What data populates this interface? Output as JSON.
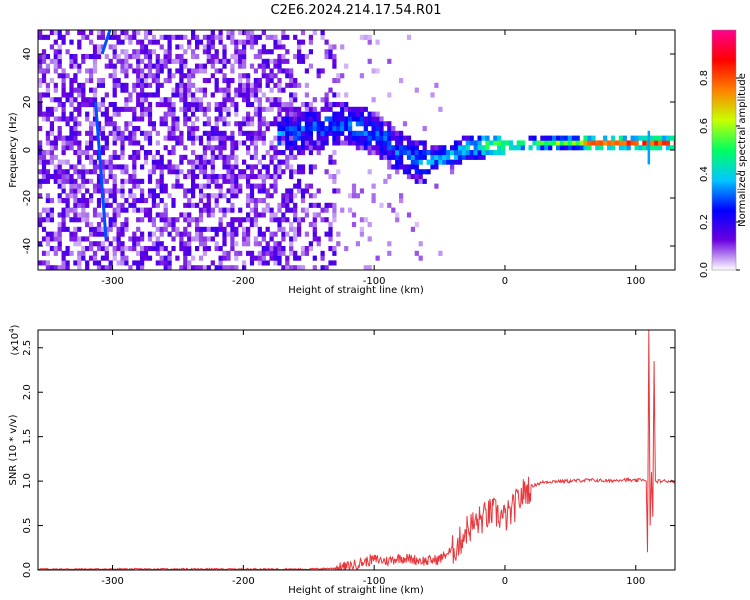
{
  "title": "C2E6.2024.214.17.54.R01",
  "chart_data": [
    {
      "type": "heatmap",
      "xlabel": "Height of straight line (km)",
      "ylabel": "Frequency (Hz)",
      "xlim": [
        -357,
        130
      ],
      "ylim": [
        -50,
        50
      ],
      "x_ticks": [
        -300,
        -200,
        -100,
        0,
        100
      ],
      "y_ticks": [
        -40,
        -20,
        0,
        20,
        40
      ],
      "colorbar": {
        "label": "Normalized spectral amplitude",
        "range": [
          0.0,
          1.0
        ],
        "ticks": [
          "0.0",
          "0.2",
          "0.4",
          "0.6",
          "0.8"
        ],
        "colors": [
          "#ffffff",
          "#6a00e0",
          "#0000ff",
          "#00c8ff",
          "#00ff60",
          "#c8ff00",
          "#ff8000",
          "#ff0000",
          "#ff0090"
        ]
      },
      "ridge": [
        [
          -160,
          6
        ],
        [
          -140,
          9
        ],
        [
          -130,
          10
        ],
        [
          -110,
          8
        ],
        [
          -95,
          4
        ],
        [
          -80,
          -3
        ],
        [
          -65,
          -6
        ],
        [
          -50,
          -4
        ],
        [
          -40,
          -3
        ],
        [
          -30,
          0
        ],
        [
          -15,
          1
        ],
        [
          0,
          1
        ],
        [
          30,
          2
        ],
        [
          60,
          2
        ],
        [
          100,
          2
        ],
        [
          130,
          2
        ]
      ],
      "streaks": [
        {
          "x_top": -302,
          "x_bottom": -308,
          "y_top": 50,
          "y_bottom": 40
        },
        {
          "x_top": -313,
          "x_bottom": -305,
          "y_top": 20,
          "y_bottom": -37
        }
      ]
    },
    {
      "type": "line",
      "xlabel": "Height of straight line (km)",
      "ylabel": "SNR (10 * v/v)",
      "y_multiplier": "(x10",
      "y_multiplier_exp": "4",
      "y_multiplier_close": ")",
      "xlim": [
        -357,
        130
      ],
      "ylim": [
        0,
        2.7
      ],
      "x_ticks": [
        -300,
        -200,
        -100,
        0,
        100
      ],
      "y_ticks": [
        "0.0",
        "0.5",
        "1.0",
        "1.5",
        "2.0",
        "2.5"
      ],
      "color": "#e8383d",
      "series": [
        {
          "x": [
            -357,
            -300,
            -200,
            -150,
            -130,
            -120,
            -110,
            -100,
            -90,
            -80,
            -70,
            -60,
            -50,
            -45,
            -40,
            -35,
            -30,
            -25,
            -20,
            -15,
            -10,
            -5,
            0,
            5,
            10,
            15,
            20,
            25,
            30,
            40,
            50,
            60,
            70,
            80,
            90,
            100,
            105,
            108,
            109,
            110,
            111,
            112,
            113,
            114,
            115,
            120,
            130
          ],
          "y": [
            0.01,
            0.01,
            0.01,
            0.01,
            0.02,
            0.04,
            0.08,
            0.12,
            0.1,
            0.14,
            0.12,
            0.1,
            0.12,
            0.18,
            0.22,
            0.3,
            0.45,
            0.5,
            0.55,
            0.6,
            0.65,
            0.62,
            0.58,
            0.65,
            0.78,
            0.88,
            0.94,
            0.97,
            0.99,
            1.0,
            1.0,
            1.01,
            1.01,
            1.0,
            1.02,
            1.0,
            1.02,
            1.0,
            0.2,
            2.7,
            0.5,
            1.1,
            0.6,
            2.35,
            1.0,
            1.0,
            1.0
          ]
        }
      ]
    }
  ]
}
